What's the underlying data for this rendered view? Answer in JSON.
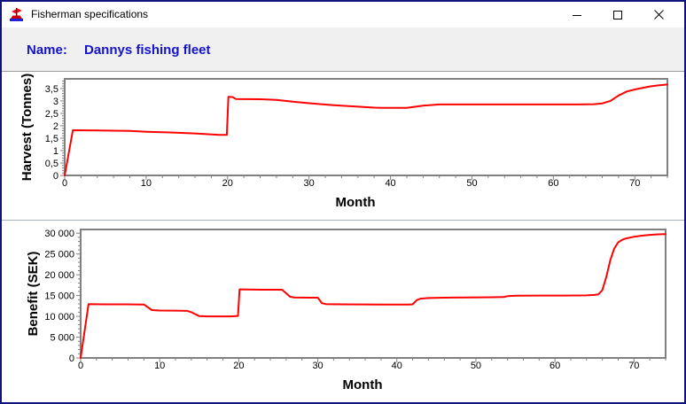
{
  "window": {
    "title": "Fisherman specifications"
  },
  "header": {
    "name_label": "Name:",
    "name_value": "Dannys fishing fleet",
    "text_color": "#1414cc"
  },
  "colors": {
    "line": "#ff0000",
    "plot_border": "#808080",
    "tick": "#808080",
    "window_border": "#10137e",
    "header_bg": "#f0f0f0"
  },
  "chart_data": [
    {
      "type": "line",
      "title": "",
      "xlabel": "Month",
      "ylabel": "Harvest (Tonnes)",
      "xlim": [
        0,
        74
      ],
      "ylim": [
        0,
        3.89
      ],
      "grid": false,
      "legend": "none",
      "x_ticks": [
        0,
        10,
        20,
        30,
        40,
        50,
        60,
        70
      ],
      "x_tick_labels": [
        "0",
        "10",
        "20",
        "30",
        "40",
        "50",
        "60",
        "70"
      ],
      "x_minor_step": 2,
      "y_ticks": [
        0,
        0.5,
        1,
        1.5,
        2,
        2.5,
        3,
        3.5
      ],
      "y_tick_labels": [
        "0",
        "0,5",
        "1",
        "1,5",
        "2",
        "2,5",
        "3",
        "3,5"
      ],
      "y_minor_step": 0.1,
      "series": [
        {
          "name": "Harvest",
          "color": "#ff0000",
          "points": [
            [
              0,
              0
            ],
            [
              1,
              1.82
            ],
            [
              4,
              1.81
            ],
            [
              8,
              1.79
            ],
            [
              10,
              1.76
            ],
            [
              13,
              1.73
            ],
            [
              16,
              1.69
            ],
            [
              19,
              1.63
            ],
            [
              19.9,
              1.63
            ],
            [
              20.1,
              3.17
            ],
            [
              20.6,
              3.16
            ],
            [
              21,
              3.08
            ],
            [
              24,
              3.07
            ],
            [
              26,
              3.04
            ],
            [
              28,
              2.97
            ],
            [
              30,
              2.91
            ],
            [
              33,
              2.83
            ],
            [
              36,
              2.77
            ],
            [
              38,
              2.73
            ],
            [
              39,
              2.72
            ],
            [
              42,
              2.72
            ],
            [
              44,
              2.81
            ],
            [
              46,
              2.86
            ],
            [
              50,
              2.86
            ],
            [
              55,
              2.86
            ],
            [
              60,
              2.86
            ],
            [
              63,
              2.86
            ],
            [
              65,
              2.87
            ],
            [
              66,
              2.9
            ],
            [
              67,
              3.0
            ],
            [
              68,
              3.22
            ],
            [
              69,
              3.38
            ],
            [
              70,
              3.46
            ],
            [
              71,
              3.53
            ],
            [
              72,
              3.59
            ],
            [
              73,
              3.63
            ],
            [
              74,
              3.66
            ]
          ]
        }
      ]
    },
    {
      "type": "line",
      "title": "",
      "xlabel": "Month",
      "ylabel": "Benefit (SEK)",
      "xlim": [
        0,
        74
      ],
      "ylim": [
        0,
        30900
      ],
      "grid": false,
      "legend": "none",
      "x_ticks": [
        0,
        10,
        20,
        30,
        40,
        50,
        60,
        70
      ],
      "x_tick_labels": [
        "0",
        "10",
        "20",
        "30",
        "40",
        "50",
        "60",
        "70"
      ],
      "x_minor_step": 2,
      "y_ticks": [
        0,
        5000,
        10000,
        15000,
        20000,
        25000,
        30000
      ],
      "y_tick_labels": [
        "0",
        "5 000",
        "10 000",
        "15 000",
        "20 000",
        "25 000",
        "30 000"
      ],
      "y_minor_step": 1000,
      "series": [
        {
          "name": "Benefit",
          "color": "#ff0000",
          "points": [
            [
              0,
              0
            ],
            [
              1,
              12950
            ],
            [
              3,
              12900
            ],
            [
              6,
              12900
            ],
            [
              8,
              12850
            ],
            [
              8.5,
              12200
            ],
            [
              9,
              11500
            ],
            [
              10,
              11400
            ],
            [
              12,
              11380
            ],
            [
              13.5,
              11320
            ],
            [
              14,
              11000
            ],
            [
              15,
              10050
            ],
            [
              16,
              10000
            ],
            [
              18,
              10000
            ],
            [
              19,
              10000
            ],
            [
              19.9,
              10100
            ],
            [
              20.1,
              16500
            ],
            [
              21,
              16450
            ],
            [
              23,
              16400
            ],
            [
              25,
              16400
            ],
            [
              25.5,
              16380
            ],
            [
              26.5,
              14700
            ],
            [
              27,
              14550
            ],
            [
              29,
              14500
            ],
            [
              30,
              14500
            ],
            [
              30.5,
              13200
            ],
            [
              31,
              12950
            ],
            [
              33,
              12900
            ],
            [
              36,
              12880
            ],
            [
              38,
              12820
            ],
            [
              40,
              12820
            ],
            [
              41.5,
              12850
            ],
            [
              42,
              12900
            ],
            [
              42.5,
              13900
            ],
            [
              43,
              14250
            ],
            [
              44,
              14400
            ],
            [
              46,
              14500
            ],
            [
              49,
              14550
            ],
            [
              52,
              14600
            ],
            [
              53.5,
              14650
            ],
            [
              54,
              14850
            ],
            [
              55,
              14980
            ],
            [
              58,
              15000
            ],
            [
              61,
              15000
            ],
            [
              64,
              15050
            ],
            [
              65,
              15150
            ],
            [
              65.5,
              15300
            ],
            [
              66,
              16300
            ],
            [
              66.5,
              19500
            ],
            [
              67,
              23500
            ],
            [
              67.5,
              26300
            ],
            [
              68,
              27800
            ],
            [
              68.5,
              28400
            ],
            [
              69,
              28750
            ],
            [
              70,
              29150
            ],
            [
              71,
              29400
            ],
            [
              72,
              29600
            ],
            [
              73,
              29720
            ],
            [
              74,
              29800
            ]
          ]
        }
      ]
    }
  ]
}
